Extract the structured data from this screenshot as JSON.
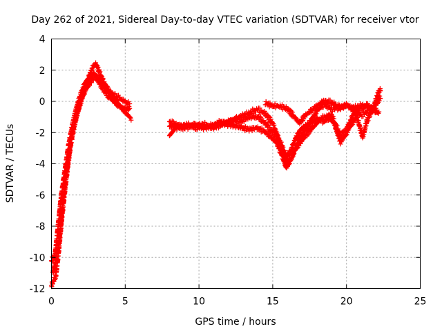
{
  "chart_data": {
    "type": "scatter",
    "title": "Day 262 of 2021, Sidereal Day-to-day VTEC variation (SDTVAR) for receiver vtor",
    "xlabel": "GPS time / hours",
    "ylabel": "SDTVAR / TECUs",
    "xlim": [
      0,
      25
    ],
    "ylim": [
      -12,
      4
    ],
    "xticks": [
      0,
      5,
      10,
      15,
      20,
      25
    ],
    "yticks": [
      -12,
      -10,
      -8,
      -6,
      -4,
      -2,
      0,
      2,
      4
    ],
    "grid": true,
    "marker": "plus",
    "series_color": "#ff0000",
    "series": [
      {
        "name": "SDTVAR",
        "tracks": [
          [
            [
              0.0,
              -11.8
            ],
            [
              0.3,
              -11.2
            ],
            [
              0.5,
              -9.5
            ],
            [
              0.7,
              -7.5
            ],
            [
              0.9,
              -5.8
            ],
            [
              1.1,
              -4.2
            ],
            [
              1.3,
              -2.8
            ],
            [
              1.5,
              -1.7
            ],
            [
              1.8,
              -0.6
            ],
            [
              2.0,
              0.1
            ],
            [
              2.3,
              0.7
            ],
            [
              2.6,
              1.2
            ],
            [
              2.9,
              1.6
            ],
            [
              3.2,
              1.5
            ],
            [
              3.6,
              1.0
            ],
            [
              4.0,
              0.6
            ],
            [
              4.4,
              0.3
            ],
            [
              4.8,
              0.1
            ],
            [
              5.3,
              -0.2
            ]
          ],
          [
            [
              0.1,
              -11.0
            ],
            [
              0.35,
              -10.0
            ],
            [
              0.55,
              -8.6
            ],
            [
              0.75,
              -6.7
            ],
            [
              0.95,
              -4.9
            ],
            [
              1.2,
              -3.3
            ],
            [
              1.45,
              -2.0
            ],
            [
              1.7,
              -0.9
            ],
            [
              2.0,
              0.0
            ],
            [
              2.3,
              0.9
            ],
            [
              2.6,
              1.7
            ],
            [
              2.8,
              2.2
            ],
            [
              3.0,
              2.4
            ],
            [
              3.2,
              2.0
            ],
            [
              3.5,
              1.3
            ],
            [
              3.9,
              0.6
            ],
            [
              4.3,
              0.1
            ],
            [
              4.7,
              -0.4
            ],
            [
              5.2,
              -0.9
            ],
            [
              5.4,
              -1.1
            ]
          ],
          [
            [
              0.0,
              -10.2
            ],
            [
              0.25,
              -9.8
            ],
            [
              0.45,
              -8.0
            ],
            [
              0.65,
              -6.2
            ],
            [
              0.9,
              -4.5
            ],
            [
              1.15,
              -2.9
            ],
            [
              1.4,
              -1.6
            ],
            [
              1.7,
              -0.4
            ],
            [
              2.0,
              0.5
            ],
            [
              2.3,
              1.2
            ],
            [
              2.6,
              1.6
            ],
            [
              2.9,
              1.8
            ],
            [
              3.1,
              1.4
            ],
            [
              3.5,
              0.8
            ],
            [
              3.9,
              0.3
            ],
            [
              4.3,
              -0.1
            ],
            [
              4.8,
              -0.4
            ],
            [
              5.3,
              -0.5
            ]
          ],
          [
            [
              8.0,
              -1.3
            ],
            [
              8.5,
              -1.5
            ],
            [
              9.0,
              -1.7
            ],
            [
              9.5,
              -1.6
            ],
            [
              10.0,
              -1.5
            ],
            [
              10.5,
              -1.6
            ],
            [
              11.0,
              -1.5
            ],
            [
              11.5,
              -1.3
            ],
            [
              12.0,
              -1.4
            ],
            [
              12.5,
              -1.1
            ],
            [
              13.0,
              -0.9
            ],
            [
              13.5,
              -0.7
            ],
            [
              14.0,
              -0.5
            ],
            [
              14.5,
              -0.8
            ],
            [
              15.0,
              -1.4
            ],
            [
              15.4,
              -2.4
            ],
            [
              15.8,
              -3.5
            ],
            [
              16.0,
              -4.0
            ],
            [
              16.3,
              -3.6
            ],
            [
              16.7,
              -2.6
            ],
            [
              17.2,
              -1.8
            ],
            [
              17.6,
              -1.2
            ],
            [
              18.0,
              -0.6
            ],
            [
              18.5,
              -0.2
            ],
            [
              19.0,
              -0.5
            ],
            [
              19.5,
              -0.4
            ],
            [
              20.0,
              -0.3
            ],
            [
              20.5,
              -0.4
            ],
            [
              21.0,
              -0.3
            ],
            [
              21.5,
              -0.4
            ],
            [
              22.0,
              -0.5
            ]
          ],
          [
            [
              8.0,
              -1.6
            ],
            [
              8.6,
              -1.7
            ],
            [
              9.2,
              -1.5
            ],
            [
              9.8,
              -1.7
            ],
            [
              10.4,
              -1.5
            ],
            [
              11.0,
              -1.7
            ],
            [
              11.6,
              -1.5
            ],
            [
              12.2,
              -1.2
            ],
            [
              12.8,
              -1.3
            ],
            [
              13.4,
              -1.0
            ],
            [
              14.0,
              -1.0
            ],
            [
              14.5,
              -1.4
            ],
            [
              14.9,
              -1.9
            ],
            [
              15.2,
              -2.1
            ],
            [
              15.6,
              -2.8
            ],
            [
              15.9,
              -3.6
            ],
            [
              16.2,
              -3.2
            ],
            [
              16.6,
              -2.3
            ],
            [
              17.0,
              -1.7
            ],
            [
              17.5,
              -1.5
            ],
            [
              18.0,
              -1.1
            ],
            [
              18.5,
              -1.3
            ],
            [
              19.0,
              -0.9
            ],
            [
              19.3,
              -1.6
            ],
            [
              19.6,
              -2.2
            ],
            [
              20.0,
              -1.8
            ],
            [
              20.5,
              -0.8
            ],
            [
              21.0,
              -0.4
            ],
            [
              21.4,
              -0.2
            ],
            [
              22.2,
              -0.8
            ]
          ],
          [
            [
              8.0,
              -2.2
            ],
            [
              8.5,
              -1.6
            ],
            [
              9.0,
              -1.6
            ],
            [
              9.7,
              -1.5
            ],
            [
              10.3,
              -1.7
            ],
            [
              10.9,
              -1.6
            ],
            [
              11.5,
              -1.4
            ],
            [
              12.1,
              -1.5
            ],
            [
              12.7,
              -1.6
            ],
            [
              13.3,
              -1.8
            ],
            [
              13.9,
              -1.7
            ],
            [
              14.4,
              -1.9
            ],
            [
              14.9,
              -2.3
            ],
            [
              15.3,
              -2.7
            ],
            [
              15.6,
              -3.4
            ],
            [
              15.9,
              -4.2
            ],
            [
              16.2,
              -3.8
            ],
            [
              16.5,
              -3.1
            ],
            [
              16.9,
              -2.6
            ],
            [
              17.3,
              -2.1
            ],
            [
              17.8,
              -1.6
            ],
            [
              18.3,
              -1.1
            ],
            [
              18.8,
              -0.9
            ],
            [
              19.2,
              -1.5
            ],
            [
              19.6,
              -2.6
            ],
            [
              19.9,
              -2.2
            ],
            [
              20.3,
              -1.5
            ],
            [
              20.7,
              -1.0
            ],
            [
              21.1,
              -2.3
            ],
            [
              21.4,
              -1.2
            ],
            [
              21.8,
              -0.5
            ],
            [
              22.1,
              0.4
            ],
            [
              22.3,
              0.8
            ]
          ],
          [
            [
              14.5,
              -0.1
            ],
            [
              15.0,
              -0.3
            ],
            [
              15.5,
              -0.3
            ],
            [
              16.0,
              -0.5
            ],
            [
              16.4,
              -0.9
            ],
            [
              16.8,
              -1.4
            ],
            [
              17.2,
              -0.9
            ],
            [
              17.6,
              -0.6
            ],
            [
              18.0,
              -0.3
            ],
            [
              18.4,
              0.0
            ],
            [
              18.8,
              0.0
            ],
            [
              19.2,
              -0.2
            ],
            [
              19.6,
              -0.4
            ],
            [
              20.0,
              -0.2
            ],
            [
              20.5,
              -0.6
            ],
            [
              21.0,
              -0.9
            ],
            [
              21.5,
              -0.6
            ],
            [
              22.0,
              -0.2
            ],
            [
              22.3,
              0.3
            ]
          ]
        ]
      }
    ]
  }
}
